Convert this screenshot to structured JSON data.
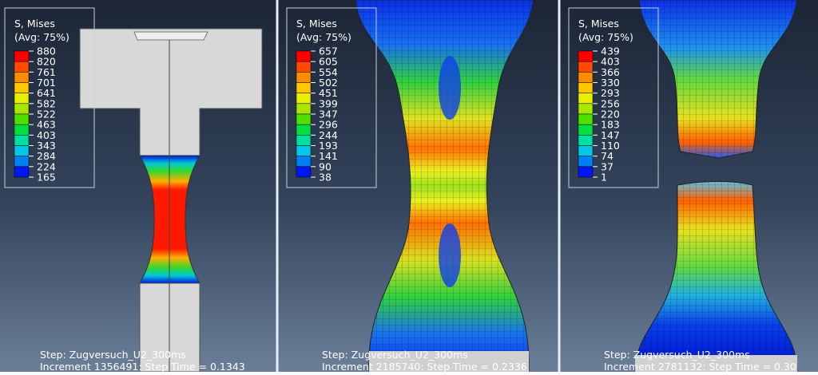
{
  "panels": [
    {
      "legend": {
        "title": "S, Mises",
        "subtitle": "(Avg: 75%)",
        "labels": [
          "880",
          "820",
          "761",
          "701",
          "641",
          "582",
          "522",
          "463",
          "403",
          "343",
          "284",
          "224",
          "165"
        ]
      },
      "step": "Step: Zugversuch_U2_300ms",
      "increment": "Increment   1356491: Step Time =    0.1343"
    },
    {
      "legend": {
        "title": "S, Mises",
        "subtitle": "(Avg: 75%)",
        "labels": [
          "657",
          "605",
          "554",
          "502",
          "451",
          "399",
          "347",
          "296",
          "244",
          "193",
          "141",
          "90",
          "38"
        ]
      },
      "step": "Step: Zugversuch_U2_300ms",
      "increment": "Increment   2185740: Step Time =    0.2336"
    },
    {
      "legend": {
        "title": "S, Mises",
        "subtitle": "(Avg: 75%)",
        "labels": [
          "439",
          "403",
          "366",
          "330",
          "293",
          "256",
          "220",
          "183",
          "147",
          "110",
          "74",
          "37",
          "1"
        ]
      },
      "step": "Step: Zugversuch_U2_300ms",
      "increment": "Increment   2781132: Step Time =    0.30"
    }
  ]
}
